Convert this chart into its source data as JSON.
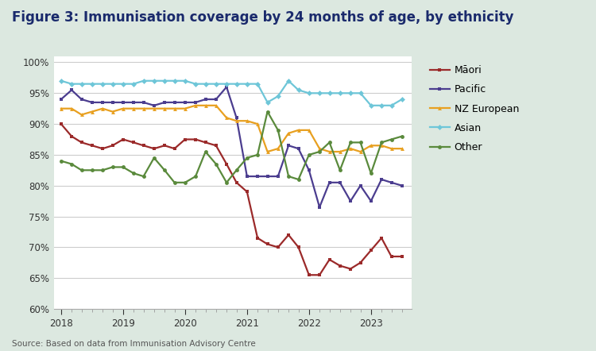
{
  "title": "Figure 3: Immunisation coverage by 24 months of age, by ethnicity",
  "source": "Source: Based on data from Immunisation Advisory Centre",
  "background_color": "#dce8e0",
  "plot_bg_color": "#ffffff",
  "ylim": [
    60,
    101
  ],
  "yticks": [
    60,
    65,
    70,
    75,
    80,
    85,
    90,
    95,
    100
  ],
  "series": {
    "Māori": {
      "color": "#9b2a2a",
      "marker": "s",
      "x": [
        2018.0,
        2018.17,
        2018.33,
        2018.5,
        2018.67,
        2018.83,
        2019.0,
        2019.17,
        2019.33,
        2019.5,
        2019.67,
        2019.83,
        2020.0,
        2020.17,
        2020.33,
        2020.5,
        2020.67,
        2020.83,
        2021.0,
        2021.17,
        2021.33,
        2021.5,
        2021.67,
        2021.83,
        2022.0,
        2022.17,
        2022.33,
        2022.5,
        2022.67,
        2022.83,
        2023.0,
        2023.17,
        2023.33,
        2023.5
      ],
      "y": [
        90.0,
        88.0,
        87.0,
        86.5,
        86.0,
        86.5,
        87.5,
        87.0,
        86.5,
        86.0,
        86.5,
        86.0,
        87.5,
        87.5,
        87.0,
        86.5,
        83.5,
        80.5,
        79.0,
        71.5,
        70.5,
        70.0,
        72.0,
        70.0,
        65.5,
        65.5,
        68.0,
        67.0,
        66.5,
        67.5,
        69.5,
        71.5,
        68.5,
        68.5
      ]
    },
    "Pacific": {
      "color": "#4b3d8f",
      "marker": "s",
      "x": [
        2018.0,
        2018.17,
        2018.33,
        2018.5,
        2018.67,
        2018.83,
        2019.0,
        2019.17,
        2019.33,
        2019.5,
        2019.67,
        2019.83,
        2020.0,
        2020.17,
        2020.33,
        2020.5,
        2020.67,
        2020.83,
        2021.0,
        2021.17,
        2021.33,
        2021.5,
        2021.67,
        2021.83,
        2022.0,
        2022.17,
        2022.33,
        2022.5,
        2022.67,
        2022.83,
        2023.0,
        2023.17,
        2023.33,
        2023.5
      ],
      "y": [
        94.0,
        95.5,
        94.0,
        93.5,
        93.5,
        93.5,
        93.5,
        93.5,
        93.5,
        93.0,
        93.5,
        93.5,
        93.5,
        93.5,
        94.0,
        94.0,
        96.0,
        91.0,
        81.5,
        81.5,
        81.5,
        81.5,
        86.5,
        86.0,
        82.5,
        76.5,
        80.5,
        80.5,
        77.5,
        80.0,
        77.5,
        81.0,
        80.5,
        80.0
      ]
    },
    "NZ European": {
      "color": "#e8a020",
      "marker": "^",
      "x": [
        2018.0,
        2018.17,
        2018.33,
        2018.5,
        2018.67,
        2018.83,
        2019.0,
        2019.17,
        2019.33,
        2019.5,
        2019.67,
        2019.83,
        2020.0,
        2020.17,
        2020.33,
        2020.5,
        2020.67,
        2020.83,
        2021.0,
        2021.17,
        2021.33,
        2021.5,
        2021.67,
        2021.83,
        2022.0,
        2022.17,
        2022.33,
        2022.5,
        2022.67,
        2022.83,
        2023.0,
        2023.17,
        2023.33,
        2023.5
      ],
      "y": [
        92.5,
        92.5,
        91.5,
        92.0,
        92.5,
        92.0,
        92.5,
        92.5,
        92.5,
        92.5,
        92.5,
        92.5,
        92.5,
        93.0,
        93.0,
        93.0,
        91.0,
        90.5,
        90.5,
        90.0,
        85.5,
        86.0,
        88.5,
        89.0,
        89.0,
        86.0,
        85.5,
        85.5,
        86.0,
        85.5,
        86.5,
        86.5,
        86.0,
        86.0
      ]
    },
    "Asian": {
      "color": "#6ec6d8",
      "marker": "D",
      "x": [
        2018.0,
        2018.17,
        2018.33,
        2018.5,
        2018.67,
        2018.83,
        2019.0,
        2019.17,
        2019.33,
        2019.5,
        2019.67,
        2019.83,
        2020.0,
        2020.17,
        2020.33,
        2020.5,
        2020.67,
        2020.83,
        2021.0,
        2021.17,
        2021.33,
        2021.5,
        2021.67,
        2021.83,
        2022.0,
        2022.17,
        2022.33,
        2022.5,
        2022.67,
        2022.83,
        2023.0,
        2023.17,
        2023.33,
        2023.5
      ],
      "y": [
        97.0,
        96.5,
        96.5,
        96.5,
        96.5,
        96.5,
        96.5,
        96.5,
        97.0,
        97.0,
        97.0,
        97.0,
        97.0,
        96.5,
        96.5,
        96.5,
        96.5,
        96.5,
        96.5,
        96.5,
        93.5,
        94.5,
        97.0,
        95.5,
        95.0,
        95.0,
        95.0,
        95.0,
        95.0,
        95.0,
        93.0,
        93.0,
        93.0,
        94.0
      ]
    },
    "Other": {
      "color": "#5a8a3c",
      "marker": "o",
      "x": [
        2018.0,
        2018.17,
        2018.33,
        2018.5,
        2018.67,
        2018.83,
        2019.0,
        2019.17,
        2019.33,
        2019.5,
        2019.67,
        2019.83,
        2020.0,
        2020.17,
        2020.33,
        2020.5,
        2020.67,
        2020.83,
        2021.0,
        2021.17,
        2021.33,
        2021.5,
        2021.67,
        2021.83,
        2022.0,
        2022.17,
        2022.33,
        2022.5,
        2022.67,
        2022.83,
        2023.0,
        2023.17,
        2023.33,
        2023.5
      ],
      "y": [
        84.0,
        83.5,
        82.5,
        82.5,
        82.5,
        83.0,
        83.0,
        82.0,
        81.5,
        84.5,
        82.5,
        80.5,
        80.5,
        81.5,
        85.5,
        83.5,
        80.5,
        82.5,
        84.5,
        85.0,
        92.0,
        89.0,
        81.5,
        81.0,
        85.0,
        85.5,
        87.0,
        82.5,
        87.0,
        87.0,
        82.0,
        87.0,
        87.5,
        88.0
      ]
    }
  }
}
